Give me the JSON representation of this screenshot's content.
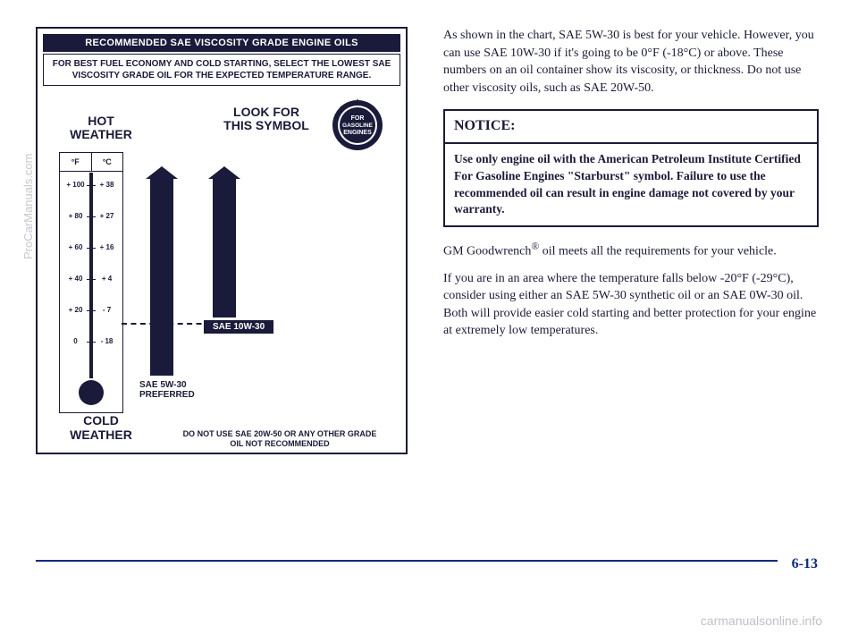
{
  "chart": {
    "header": "RECOMMENDED SAE VISCOSITY GRADE ENGINE OILS",
    "sub": "FOR BEST FUEL ECONOMY AND COLD STARTING, SELECT THE LOWEST SAE VISCOSITY GRADE OIL FOR THE EXPECTED TEMPERATURE RANGE.",
    "hot": "HOT WEATHER",
    "cold": "COLD WEATHER",
    "look": "LOOK FOR THIS SYMBOL",
    "seal_top": "FOR",
    "seal_mid": "GASOLINE",
    "seal_bot": "ENGINES",
    "f_label": "°F",
    "c_label": "°C",
    "scale": [
      {
        "f": "+ 100",
        "c": "+ 38",
        "pos": 10
      },
      {
        "f": "+ 80",
        "c": "+ 27",
        "pos": 45
      },
      {
        "f": "+ 60",
        "c": "+ 16",
        "pos": 80
      },
      {
        "f": "+ 40",
        "c": "+ 4",
        "pos": 115
      },
      {
        "f": "+ 20",
        "c": "- 7",
        "pos": 150
      },
      {
        "f": "0",
        "c": "- 18",
        "pos": 185
      }
    ],
    "sae10": "SAE 10W-30",
    "sae5a": "SAE 5W-30",
    "sae5b": "PREFERRED",
    "footer": "DO NOT USE SAE 20W-50 OR ANY OTHER GRADE OIL NOT RECOMMENDED"
  },
  "right": {
    "p1": "As shown in the chart, SAE 5W-30 is best for your vehicle. However, you can use SAE 10W-30 if it's going to be 0°F (-18°C) or above. These numbers on an oil container show its viscosity, or thickness. Do not use other viscosity oils, such as SAE 20W-50.",
    "notice_title": "NOTICE:",
    "notice_body": "Use only engine oil with the American Petroleum Institute Certified For Gasoline Engines \"Starburst\" symbol. Failure to use the recommended oil can result in engine damage not covered by your warranty.",
    "p2a": "GM Goodwrench",
    "p2b": " oil meets all the requirements for your vehicle.",
    "p3": "If you are in an area where the temperature falls below -20°F (-29°C), consider using either an SAE 5W-30 synthetic oil or an SAE 0W-30 oil. Both will provide easier cold starting and better protection for your engine at extremely low temperatures."
  },
  "pagenum": "6-13",
  "wm1": "ProCarManuals.com",
  "wm2": "carmanualsonline.info"
}
